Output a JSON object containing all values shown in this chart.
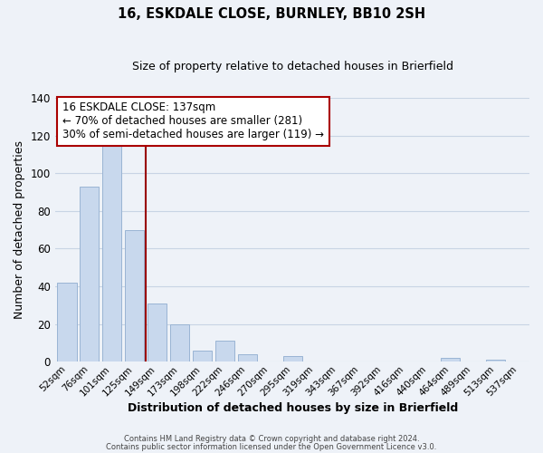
{
  "title": "16, ESKDALE CLOSE, BURNLEY, BB10 2SH",
  "subtitle": "Size of property relative to detached houses in Brierfield",
  "xlabel": "Distribution of detached houses by size in Brierfield",
  "ylabel": "Number of detached properties",
  "bar_labels": [
    "52sqm",
    "76sqm",
    "101sqm",
    "125sqm",
    "149sqm",
    "173sqm",
    "198sqm",
    "222sqm",
    "246sqm",
    "270sqm",
    "295sqm",
    "319sqm",
    "343sqm",
    "367sqm",
    "392sqm",
    "416sqm",
    "440sqm",
    "464sqm",
    "489sqm",
    "513sqm",
    "537sqm"
  ],
  "bar_values": [
    42,
    93,
    116,
    70,
    31,
    20,
    6,
    11,
    4,
    0,
    3,
    0,
    0,
    0,
    0,
    0,
    0,
    2,
    0,
    1,
    0
  ],
  "bar_color": "#c8d8ed",
  "bar_edge_color": "#9ab4d4",
  "ylim": [
    0,
    140
  ],
  "yticks": [
    0,
    20,
    40,
    60,
    80,
    100,
    120,
    140
  ],
  "annotation_title": "16 ESKDALE CLOSE: 137sqm",
  "annotation_line1": "← 70% of detached houses are smaller (281)",
  "annotation_line2": "30% of semi-detached houses are larger (119) →",
  "footer1": "Contains HM Land Registry data © Crown copyright and database right 2024.",
  "footer2": "Contains public sector information licensed under the Open Government Licence v3.0.",
  "bg_color": "#eef2f8",
  "plot_bg_color": "#eef2f8",
  "grid_color": "#c8d4e4",
  "annotation_box_color": "#ffffff",
  "annotation_box_edge": "#aa0000",
  "red_line_color": "#990000",
  "red_line_index": 3
}
